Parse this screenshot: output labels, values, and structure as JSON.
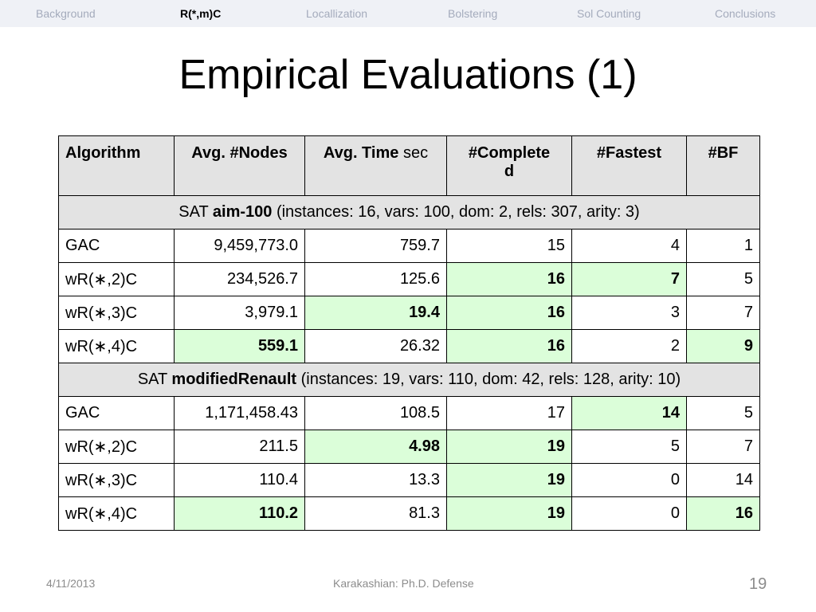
{
  "nav": {
    "items": [
      "Background",
      "R(*,m)C",
      "Locallization",
      "Bolstering",
      "Sol Counting",
      "Conclusions"
    ],
    "active": "R(*,m)C"
  },
  "title": "Empirical Evaluations (1)",
  "table": {
    "headers": {
      "algorithm": "Algorithm",
      "nodes": "Avg. #Nodes",
      "time": "Avg. Time",
      "time_unit": " sec",
      "completed_line1": "#Complete",
      "completed_line2": "d",
      "fastest": "#Fastest",
      "bf": "#BF"
    },
    "groups": [
      {
        "prefix": "SAT ",
        "name": "aim-100",
        "details": " (instances: 16, vars: 100, dom: 2, rels: 307, arity: 3)",
        "rows": [
          {
            "algorithm": "GAC",
            "nodes": "9,459,773.0",
            "time": "759.7",
            "completed": "15",
            "fastest": "4",
            "bf": "1"
          },
          {
            "algorithm": "wR(∗,2)C",
            "nodes": "234,526.7",
            "time": "125.6",
            "completed": "16",
            "fastest": "7",
            "bf": "5"
          },
          {
            "algorithm": "wR(∗,3)C",
            "nodes": "3,979.1",
            "time": "19.4",
            "completed": "16",
            "fastest": "3",
            "bf": "7"
          },
          {
            "algorithm": "wR(∗,4)C",
            "nodes": "559.1",
            "time": "26.32",
            "completed": "16",
            "fastest": "2",
            "bf": "9"
          }
        ]
      },
      {
        "prefix": "SAT ",
        "name": "modifiedRenault",
        "details": " (instances: 19, vars: 110, dom: 42, rels: 128, arity: 10)",
        "rows": [
          {
            "algorithm": "GAC",
            "nodes": "1,171,458.43",
            "time": "108.5",
            "completed": "17",
            "fastest": "14",
            "bf": "5"
          },
          {
            "algorithm": "wR(∗,2)C",
            "nodes": "211.5",
            "time": "4.98",
            "completed": "19",
            "fastest": "5",
            "bf": "7"
          },
          {
            "algorithm": "wR(∗,3)C",
            "nodes": "110.4",
            "time": "13.3",
            "completed": "19",
            "fastest": "0",
            "bf": "14"
          },
          {
            "algorithm": "wR(∗,4)C",
            "nodes": "110.2",
            "time": "81.3",
            "completed": "19",
            "fastest": "0",
            "bf": "16"
          }
        ]
      }
    ]
  },
  "footer": {
    "date": "4/11/2013",
    "center": "Karakashian: Ph.D. Defense",
    "page": "19"
  },
  "colors": {
    "highlight": "#dbfed9",
    "header_bg": "#e3e3e3",
    "nav_bg": "#eff1f6"
  }
}
